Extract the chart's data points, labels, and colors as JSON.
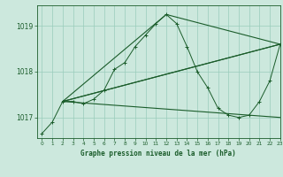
{
  "title": "Graphe pression niveau de la mer (hPa)",
  "background_color": "#cce8dd",
  "grid_color": "#99ccbb",
  "line_color": "#1a5c2a",
  "xlim": [
    -0.5,
    23
  ],
  "ylim": [
    1016.55,
    1019.45
  ],
  "yticks": [
    1017,
    1018,
    1019
  ],
  "xticks": [
    0,
    1,
    2,
    3,
    4,
    5,
    6,
    7,
    8,
    9,
    10,
    11,
    12,
    13,
    14,
    15,
    16,
    17,
    18,
    19,
    20,
    21,
    22,
    23
  ],
  "series_main": {
    "x": [
      0,
      1,
      2,
      3,
      4,
      5,
      6,
      7,
      8,
      9,
      10,
      11,
      12,
      13,
      14,
      15,
      16,
      17,
      18,
      19,
      20,
      21,
      22,
      23
    ],
    "y": [
      1016.65,
      1016.9,
      1017.35,
      1017.35,
      1017.3,
      1017.4,
      1017.6,
      1018.05,
      1018.2,
      1018.55,
      1018.8,
      1019.05,
      1019.25,
      1019.05,
      1018.55,
      1018.0,
      1017.65,
      1017.2,
      1017.05,
      1017.0,
      1017.05,
      1017.35,
      1017.8,
      1018.6
    ]
  },
  "series_triangle": {
    "x": [
      2,
      12,
      23,
      2
    ],
    "y": [
      1017.35,
      1019.25,
      1018.6,
      1017.35
    ]
  },
  "series_line1": {
    "x": [
      2,
      23
    ],
    "y": [
      1017.35,
      1017.0
    ]
  },
  "series_line2": {
    "x": [
      2,
      23
    ],
    "y": [
      1017.35,
      1018.6
    ]
  }
}
